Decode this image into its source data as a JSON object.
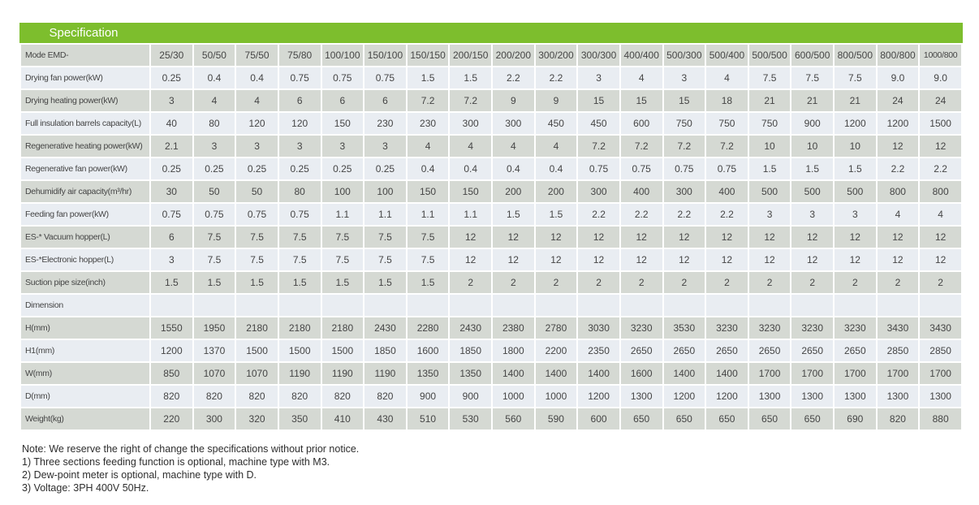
{
  "colors": {
    "header_green": "#7dbe2d",
    "row_gray": "#d5d9d3",
    "row_light": "#e9edf2"
  },
  "table": {
    "title": "Specification",
    "model_row_label": "Mode EMD-",
    "columns": [
      "25/30",
      "50/50",
      "75/50",
      "75/80",
      "100/100",
      "150/100",
      "150/150",
      "200/150",
      "200/200",
      "300/200",
      "300/300",
      "400/400",
      "500/300",
      "500/400",
      "500/500",
      "600/500",
      "800/500",
      "800/800",
      "1000/800"
    ],
    "rows": [
      {
        "label": "Drying fan power(kW)",
        "values": [
          "0.25",
          "0.4",
          "0.4",
          "0.75",
          "0.75",
          "0.75",
          "1.5",
          "1.5",
          "2.2",
          "2.2",
          "3",
          "4",
          "3",
          "4",
          "7.5",
          "7.5",
          "7.5",
          "9.0",
          "9.0"
        ]
      },
      {
        "label": "Drying heating power(kW)",
        "values": [
          "3",
          "4",
          "4",
          "6",
          "6",
          "6",
          "7.2",
          "7.2",
          "9",
          "9",
          "15",
          "15",
          "15",
          "18",
          "21",
          "21",
          "21",
          "24",
          "24"
        ]
      },
      {
        "label": "Full insulation barrels capacity(L)",
        "values": [
          "40",
          "80",
          "120",
          "120",
          "150",
          "230",
          "230",
          "300",
          "300",
          "450",
          "450",
          "600",
          "750",
          "750",
          "750",
          "900",
          "1200",
          "1200",
          "1500"
        ]
      },
      {
        "label": "Regenerative heating power(kW)",
        "values": [
          "2.1",
          "3",
          "3",
          "3",
          "3",
          "3",
          "4",
          "4",
          "4",
          "4",
          "7.2",
          "7.2",
          "7.2",
          "7.2",
          "10",
          "10",
          "10",
          "12",
          "12"
        ]
      },
      {
        "label": "Regenerative fan power(kW)",
        "values": [
          "0.25",
          "0.25",
          "0.25",
          "0.25",
          "0.25",
          "0.25",
          "0.4",
          "0.4",
          "0.4",
          "0.4",
          "0.75",
          "0.75",
          "0.75",
          "0.75",
          "1.5",
          "1.5",
          "1.5",
          "2.2",
          "2.2"
        ]
      },
      {
        "label": "Dehumidify air capacity(m³/hr)",
        "values": [
          "30",
          "50",
          "50",
          "80",
          "100",
          "100",
          "150",
          "150",
          "200",
          "200",
          "300",
          "400",
          "300",
          "400",
          "500",
          "500",
          "500",
          "800",
          "800"
        ]
      },
      {
        "label": "Feeding fan power(kW)",
        "values": [
          "0.75",
          "0.75",
          "0.75",
          "0.75",
          "1.1",
          "1.1",
          "1.1",
          "1.1",
          "1.5",
          "1.5",
          "2.2",
          "2.2",
          "2.2",
          "2.2",
          "3",
          "3",
          "3",
          "4",
          "4"
        ]
      },
      {
        "label": "ES-* Vacuum hopper(L)",
        "values": [
          "6",
          "7.5",
          "7.5",
          "7.5",
          "7.5",
          "7.5",
          "7.5",
          "12",
          "12",
          "12",
          "12",
          "12",
          "12",
          "12",
          "12",
          "12",
          "12",
          "12",
          "12"
        ]
      },
      {
        "label": "ES-*Electronic hopper(L)",
        "values": [
          "3",
          "7.5",
          "7.5",
          "7.5",
          "7.5",
          "7.5",
          "7.5",
          "12",
          "12",
          "12",
          "12",
          "12",
          "12",
          "12",
          "12",
          "12",
          "12",
          "12",
          "12"
        ]
      },
      {
        "label": "Suction pipe size(inch)",
        "values": [
          "1.5",
          "1.5",
          "1.5",
          "1.5",
          "1.5",
          "1.5",
          "1.5",
          "2",
          "2",
          "2",
          "2",
          "2",
          "2",
          "2",
          "2",
          "2",
          "2",
          "2",
          "2"
        ]
      },
      {
        "label": "Dimension",
        "values": [
          "",
          "",
          "",
          "",
          "",
          "",
          "",
          "",
          "",
          "",
          "",
          "",
          "",
          "",
          "",
          "",
          "",
          "",
          ""
        ]
      },
      {
        "label": "H(mm)",
        "values": [
          "1550",
          "1950",
          "2180",
          "2180",
          "2180",
          "2430",
          "2280",
          "2430",
          "2380",
          "2780",
          "3030",
          "3230",
          "3530",
          "3230",
          "3230",
          "3230",
          "3230",
          "3430",
          "3430"
        ]
      },
      {
        "label": "H1(mm)",
        "values": [
          "1200",
          "1370",
          "1500",
          "1500",
          "1500",
          "1850",
          "1600",
          "1850",
          "1800",
          "2200",
          "2350",
          "2650",
          "2650",
          "2650",
          "2650",
          "2650",
          "2650",
          "2850",
          "2850"
        ]
      },
      {
        "label": "W(mm)",
        "values": [
          "850",
          "1070",
          "1070",
          "1190",
          "1190",
          "1190",
          "1350",
          "1350",
          "1400",
          "1400",
          "1400",
          "1600",
          "1400",
          "1400",
          "1700",
          "1700",
          "1700",
          "1700",
          "1700"
        ]
      },
      {
        "label": "D(mm)",
        "values": [
          "820",
          "820",
          "820",
          "820",
          "820",
          "820",
          "900",
          "900",
          "1000",
          "1000",
          "1200",
          "1300",
          "1200",
          "1200",
          "1300",
          "1300",
          "1300",
          "1300",
          "1300"
        ]
      },
      {
        "label": "Weight(kg)",
        "values": [
          "220",
          "300",
          "320",
          "350",
          "410",
          "430",
          "510",
          "530",
          "560",
          "590",
          "600",
          "650",
          "650",
          "650",
          "650",
          "650",
          "690",
          "820",
          "880"
        ]
      }
    ],
    "notes": [
      "Note: We reserve the right of change the specifications without prior notice.",
      "1) Three sections feeding function is optional, machine type with M3.",
      "2) Dew-point meter is optional, machine type with D.",
      "3) Voltage: 3PH 400V 50Hz."
    ]
  }
}
